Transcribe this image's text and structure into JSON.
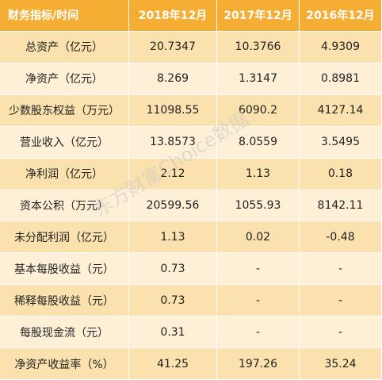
{
  "table": {
    "headers": [
      "财务指标/时间",
      "2018年12月",
      "2017年12月",
      "2016年12月"
    ],
    "rows": [
      {
        "label": "总资产（亿元）",
        "values": [
          "20.7347",
          "10.3766",
          "4.9309"
        ]
      },
      {
        "label": "净资产（亿元）",
        "values": [
          "8.269",
          "1.3147",
          "0.8981"
        ]
      },
      {
        "label": "少数股东权益（万元）",
        "values": [
          "11098.55",
          "6090.2",
          "4127.14"
        ]
      },
      {
        "label": "营业收入（亿元）",
        "values": [
          "13.8573",
          "8.0559",
          "3.5495"
        ]
      },
      {
        "label": "净利润（亿元）",
        "values": [
          "2.12",
          "1.13",
          "0.18"
        ]
      },
      {
        "label": "资本公积（万元）",
        "values": [
          "20599.56",
          "1055.93",
          "8142.11"
        ]
      },
      {
        "label": "未分配利润（亿元）",
        "values": [
          "1.13",
          "0.02",
          "-0.48"
        ]
      },
      {
        "label": "基本每股收益（元）",
        "values": [
          "0.73",
          "-",
          "-"
        ]
      },
      {
        "label": "稀释每股收益（元）",
        "values": [
          "0.73",
          "-",
          "-"
        ]
      },
      {
        "label": "每股现金流（元）",
        "values": [
          "0.31",
          "-",
          "-"
        ]
      },
      {
        "label": "净资产收益率（%）",
        "values": [
          "41.25",
          "197.26",
          "35.24"
        ]
      }
    ]
  },
  "watermark": "东方财富Choice数据",
  "colors": {
    "header_bg": "#f5ae33",
    "row_dark": "#fbe1ad",
    "row_light": "#fdf0d6"
  }
}
